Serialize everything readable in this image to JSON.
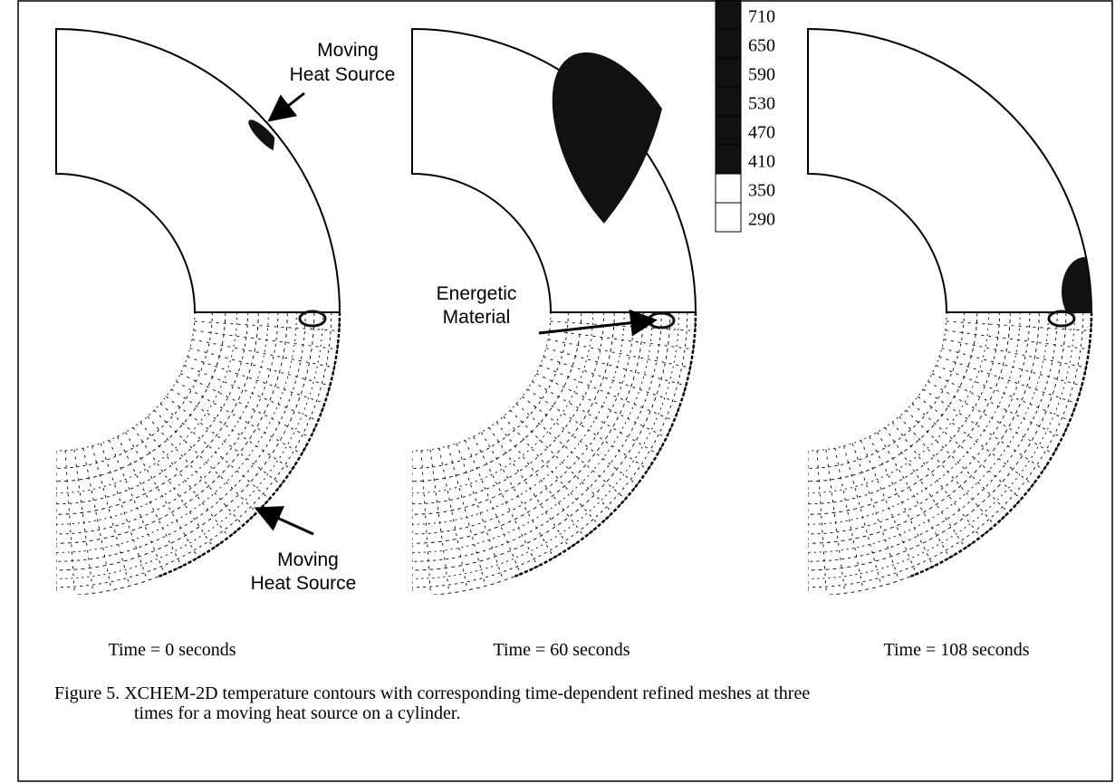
{
  "legend": {
    "levels": [
      710,
      650,
      590,
      530,
      470,
      410,
      350,
      290
    ]
  },
  "panels": [
    {
      "caption": "Time = 0 seconds",
      "annotations": [
        {
          "lines": [
            "Moving",
            "Heat Source"
          ]
        },
        {
          "lines": [
            "Moving",
            "Heat Source"
          ]
        }
      ]
    },
    {
      "caption": "Time = 60 seconds",
      "annotations": [
        {
          "lines": [
            "Energetic",
            "Material"
          ]
        }
      ]
    },
    {
      "caption": "Time = 108 seconds"
    }
  ],
  "caption": {
    "lines": [
      "Figure 5. XCHEM-2D temperature contours with corresponding time-dependent refined meshes at three",
      "times for a moving heat source on a cylinder."
    ]
  }
}
